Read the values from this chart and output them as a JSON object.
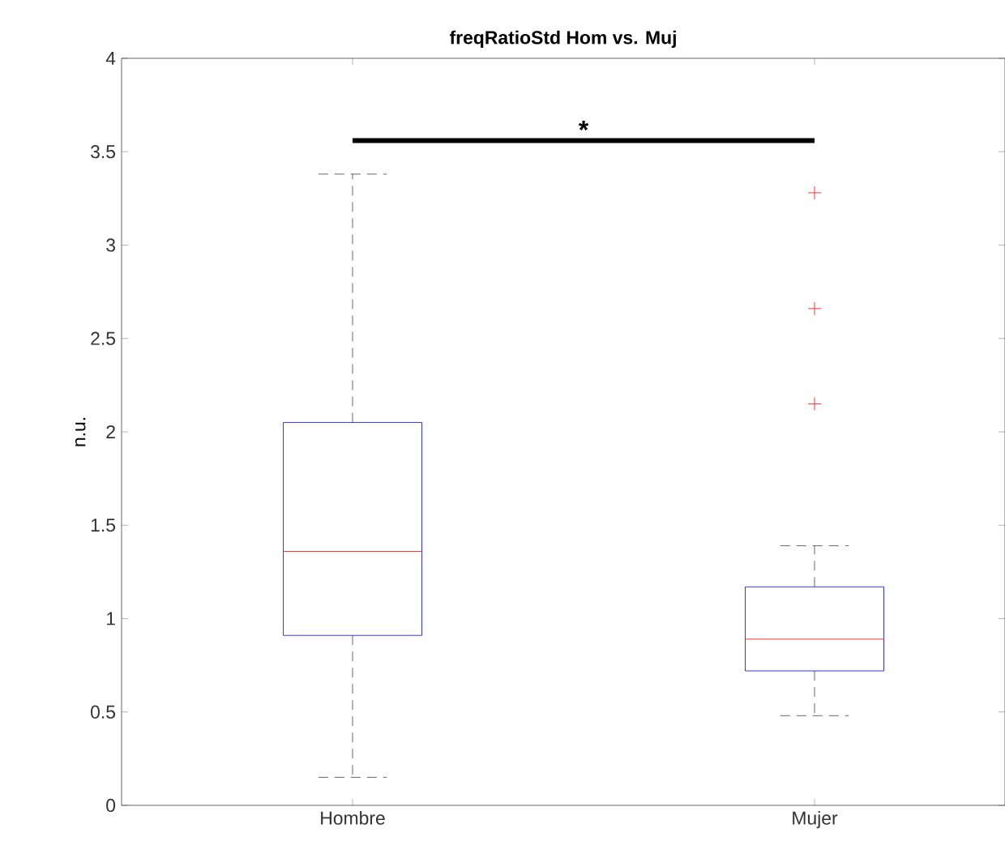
{
  "chart_data": {
    "type": "box",
    "title": "freqRatioStd Hom vs. Muj",
    "ylabel": "n.u.",
    "categories": [
      "Hombre",
      "Mujer"
    ],
    "boxes": [
      {
        "low": 0.15,
        "q1": 0.91,
        "median": 1.36,
        "q3": 2.05,
        "high": 3.38
      },
      {
        "low": 0.48,
        "q1": 0.72,
        "median": 0.89,
        "q3": 1.17,
        "high": 1.39,
        "outliers": [
          3.28,
          2.66,
          2.15
        ]
      }
    ],
    "ylim": [
      0,
      4
    ],
    "yticks": [
      0,
      0.5,
      1,
      1.5,
      2,
      2.5,
      3,
      3.5,
      4
    ],
    "annotations": [
      "*"
    ],
    "grid": false
  }
}
